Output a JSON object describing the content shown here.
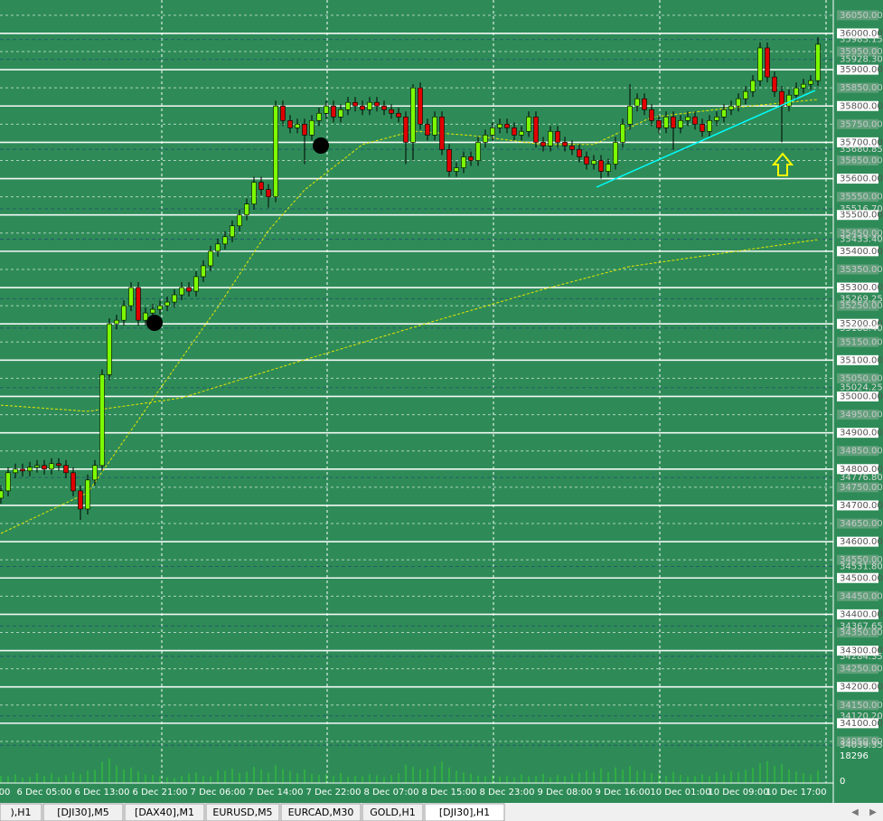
{
  "chart_data": {
    "type": "candlestick",
    "xlim": [
      -0.125,
      114.875
    ],
    "ylim": [
      34020,
      36092
    ],
    "xticks": [
      {
        "value": 0.5,
        "label": "00"
      },
      {
        "value": 6,
        "label": "6 Dec 05:00"
      },
      {
        "value": 14,
        "label": "6 Dec 13:00"
      },
      {
        "value": 22,
        "label": "6 Dec 21:00"
      },
      {
        "value": 30,
        "label": "7 Dec 06:00"
      },
      {
        "value": 38,
        "label": "7 Dec 14:00"
      },
      {
        "value": 46,
        "label": "7 Dec 22:00"
      },
      {
        "value": 54,
        "label": "8 Dec 07:00"
      },
      {
        "value": 62,
        "label": "8 Dec 15:00"
      },
      {
        "value": 70,
        "label": "8 Dec 23:00"
      },
      {
        "value": 78,
        "label": "9 Dec 08:00"
      },
      {
        "value": 86,
        "label": "9 Dec 16:00"
      },
      {
        "value": 94,
        "label": "10 Dec 01:00"
      },
      {
        "value": 102,
        "label": "10 Dec 09:00"
      },
      {
        "value": 110,
        "label": "10 Dec 17:00"
      }
    ],
    "yticks": [
      {
        "value": 36050,
        "label": "36050.00"
      },
      {
        "value": 36000,
        "label": "36000.00"
      },
      {
        "value": 35950,
        "label": "35950.00"
      },
      {
        "value": 35900,
        "label": "35900.00"
      },
      {
        "value": 35850,
        "label": "35850.00"
      },
      {
        "value": 35800,
        "label": "35800.00"
      },
      {
        "value": 35750,
        "label": "35750.00"
      },
      {
        "value": 35700,
        "label": "35700.00"
      },
      {
        "value": 35650,
        "label": "35650.00"
      },
      {
        "value": 35600,
        "label": "35600.00"
      },
      {
        "value": 35550,
        "label": "35550.00"
      },
      {
        "value": 35500,
        "label": "35500.00"
      },
      {
        "value": 35450,
        "label": "35450.00"
      },
      {
        "value": 35400,
        "label": "35400.00"
      },
      {
        "value": 35350,
        "label": "35350.00"
      },
      {
        "value": 35300,
        "label": "35300.00"
      },
      {
        "value": 35250,
        "label": "35250.00"
      },
      {
        "value": 35200,
        "label": "35200.00"
      },
      {
        "value": 35150,
        "label": "35150.00"
      },
      {
        "value": 35100,
        "label": "35100.00"
      },
      {
        "value": 35050,
        "label": "35050.00"
      },
      {
        "value": 35000,
        "label": "35000.00"
      },
      {
        "value": 34950,
        "label": "34950.00"
      },
      {
        "value": 34900,
        "label": "34900.00"
      },
      {
        "value": 34850,
        "label": "34850.00"
      },
      {
        "value": 34800,
        "label": "34800.00"
      },
      {
        "value": 34750,
        "label": "34750.00"
      },
      {
        "value": 34700,
        "label": "34700.00"
      },
      {
        "value": 34650,
        "label": "34650.00"
      },
      {
        "value": 34600,
        "label": "34600.00"
      },
      {
        "value": 34550,
        "label": "34550.00"
      },
      {
        "value": 34500,
        "label": "34500.00"
      },
      {
        "value": 34450,
        "label": "34450.00"
      },
      {
        "value": 34400,
        "label": "34400.00"
      },
      {
        "value": 34350,
        "label": "34350.00"
      },
      {
        "value": 34300,
        "label": "34300.00"
      },
      {
        "value": 34250,
        "label": "34250.00"
      },
      {
        "value": 34200,
        "label": "34200.00"
      },
      {
        "value": 34150,
        "label": "34150.00"
      },
      {
        "value": 34100,
        "label": "34100.00"
      },
      {
        "value": 34050,
        "label": "34050.00"
      }
    ],
    "levels": [
      {
        "value": 35983.15,
        "label": "35983.15"
      },
      {
        "value": 35928.3,
        "label": "35928.30"
      },
      {
        "value": 35680.85,
        "label": "35680.85"
      },
      {
        "value": 35516.7,
        "label": "35516.70"
      },
      {
        "value": 35433.4,
        "label": "35433.40"
      },
      {
        "value": 35269.25,
        "label": "35269.25"
      },
      {
        "value": 35188.4,
        "label": "35188.40"
      },
      {
        "value": 35024.25,
        "label": "35024.25"
      },
      {
        "value": 34776.8,
        "label": "34776.80"
      },
      {
        "value": 34531.8,
        "label": "34531.80"
      },
      {
        "value": 34367.65,
        "label": "34367.65"
      },
      {
        "value": 34284.35,
        "label": "34284.35"
      },
      {
        "value": 34120.2,
        "label": "34120.20"
      },
      {
        "value": 34039.35,
        "label": "34039.35"
      }
    ],
    "up_color": "#7cfc00",
    "down_color": "#e00000",
    "ohlc": [
      [
        34720,
        34755,
        34705,
        34740
      ],
      [
        34740,
        34805,
        34725,
        34790
      ],
      [
        34790,
        34815,
        34775,
        34800
      ],
      [
        34800,
        34815,
        34780,
        34795
      ],
      [
        34795,
        34820,
        34780,
        34805
      ],
      [
        34805,
        34825,
        34790,
        34810
      ],
      [
        34810,
        34825,
        34785,
        34800
      ],
      [
        34800,
        34830,
        34785,
        34815
      ],
      [
        34815,
        34830,
        34795,
        34810
      ],
      [
        34810,
        34825,
        34775,
        34790
      ],
      [
        34790,
        34805,
        34725,
        34740
      ],
      [
        34740,
        34755,
        34660,
        34690
      ],
      [
        34690,
        34785,
        34675,
        34770
      ],
      [
        34770,
        34825,
        34755,
        34810
      ],
      [
        34810,
        35075,
        34795,
        35060
      ],
      [
        35060,
        35215,
        35045,
        35200
      ],
      [
        35200,
        35225,
        35185,
        35210
      ],
      [
        35210,
        35265,
        35195,
        35250
      ],
      [
        35250,
        35315,
        35235,
        35300
      ],
      [
        35300,
        35315,
        35195,
        35210
      ],
      [
        35210,
        35245,
        35195,
        35230
      ],
      [
        35230,
        35255,
        35215,
        35240
      ],
      [
        35240,
        35265,
        35225,
        35250
      ],
      [
        35250,
        35275,
        35235,
        35260
      ],
      [
        35260,
        35295,
        35245,
        35280
      ],
      [
        35280,
        35315,
        35265,
        35300
      ],
      [
        35300,
        35315,
        35275,
        35290
      ],
      [
        35290,
        35345,
        35275,
        35330
      ],
      [
        35330,
        35375,
        35315,
        35360
      ],
      [
        35360,
        35415,
        35345,
        35400
      ],
      [
        35400,
        35435,
        35385,
        35420
      ],
      [
        35420,
        35455,
        35405,
        35440
      ],
      [
        35440,
        35485,
        35425,
        35470
      ],
      [
        35470,
        35515,
        35455,
        35500
      ],
      [
        35500,
        35545,
        35485,
        35530
      ],
      [
        35530,
        35605,
        35515,
        35590
      ],
      [
        35590,
        35605,
        35555,
        35570
      ],
      [
        35570,
        35585,
        35520,
        35550
      ],
      [
        35550,
        35815,
        35535,
        35800
      ],
      [
        35800,
        35815,
        35745,
        35760
      ],
      [
        35760,
        35775,
        35725,
        35740
      ],
      [
        35740,
        35765,
        35725,
        35750
      ],
      [
        35750,
        35765,
        35640,
        35720
      ],
      [
        35720,
        35775,
        35705,
        35760
      ],
      [
        35760,
        35795,
        35745,
        35780
      ],
      [
        35780,
        35815,
        35765,
        35800
      ],
      [
        35800,
        35815,
        35755,
        35770
      ],
      [
        35770,
        35805,
        35755,
        35790
      ],
      [
        35790,
        35825,
        35775,
        35810
      ],
      [
        35810,
        35825,
        35785,
        35800
      ],
      [
        35800,
        35815,
        35775,
        35790
      ],
      [
        35790,
        35825,
        35775,
        35810
      ],
      [
        35810,
        35825,
        35785,
        35800
      ],
      [
        35800,
        35815,
        35775,
        35790
      ],
      [
        35790,
        35805,
        35765,
        35780
      ],
      [
        35780,
        35795,
        35755,
        35770
      ],
      [
        35770,
        35785,
        35640,
        35700
      ],
      [
        35700,
        35860,
        35650,
        35850
      ],
      [
        35850,
        35865,
        35735,
        35750
      ],
      [
        35750,
        35765,
        35705,
        35720
      ],
      [
        35720,
        35785,
        35705,
        35770
      ],
      [
        35770,
        35785,
        35665,
        35680
      ],
      [
        35680,
        35695,
        35605,
        35620
      ],
      [
        35620,
        35645,
        35605,
        35630
      ],
      [
        35630,
        35675,
        35615,
        35660
      ],
      [
        35660,
        35675,
        35635,
        35650
      ],
      [
        35650,
        35715,
        35635,
        35700
      ],
      [
        35700,
        35735,
        35685,
        35720
      ],
      [
        35720,
        35755,
        35705,
        35740
      ],
      [
        35740,
        35765,
        35725,
        35750
      ],
      [
        35750,
        35765,
        35725,
        35740
      ],
      [
        35740,
        35755,
        35705,
        35720
      ],
      [
        35720,
        35745,
        35705,
        35730
      ],
      [
        35730,
        35785,
        35715,
        35770
      ],
      [
        35770,
        35785,
        35685,
        35700
      ],
      [
        35700,
        35715,
        35675,
        35690
      ],
      [
        35690,
        35745,
        35675,
        35730
      ],
      [
        35730,
        35745,
        35685,
        35700
      ],
      [
        35700,
        35715,
        35675,
        35690
      ],
      [
        35690,
        35705,
        35665,
        35680
      ],
      [
        35680,
        35695,
        35645,
        35660
      ],
      [
        35660,
        35675,
        35625,
        35640
      ],
      [
        35640,
        35665,
        35625,
        35650
      ],
      [
        35650,
        35665,
        35600,
        35620
      ],
      [
        35620,
        35655,
        35605,
        35640
      ],
      [
        35640,
        35715,
        35625,
        35700
      ],
      [
        35700,
        35765,
        35685,
        35750
      ],
      [
        35750,
        35860,
        35735,
        35800
      ],
      [
        35800,
        35835,
        35785,
        35820
      ],
      [
        35820,
        35835,
        35775,
        35790
      ],
      [
        35790,
        35805,
        35745,
        35760
      ],
      [
        35760,
        35775,
        35725,
        35740
      ],
      [
        35740,
        35785,
        35725,
        35770
      ],
      [
        35770,
        35785,
        35680,
        35740
      ],
      [
        35740,
        35775,
        35725,
        35760
      ],
      [
        35760,
        35785,
        35745,
        35770
      ],
      [
        35770,
        35785,
        35735,
        35750
      ],
      [
        35750,
        35765,
        35715,
        35730
      ],
      [
        35730,
        35775,
        35715,
        35760
      ],
      [
        35760,
        35785,
        35745,
        35770
      ],
      [
        35770,
        35805,
        35755,
        35790
      ],
      [
        35790,
        35815,
        35775,
        35800
      ],
      [
        35800,
        35835,
        35785,
        35820
      ],
      [
        35820,
        35855,
        35805,
        35840
      ],
      [
        35840,
        35885,
        35825,
        35870
      ],
      [
        35870,
        35975,
        35855,
        35960
      ],
      [
        35960,
        35975,
        35865,
        35880
      ],
      [
        35880,
        35895,
        35825,
        35840
      ],
      [
        35840,
        35855,
        35700,
        35800
      ],
      [
        35800,
        35845,
        35785,
        35830
      ],
      [
        35830,
        35865,
        35815,
        35850
      ],
      [
        35850,
        35875,
        35835,
        35860
      ],
      [
        35860,
        35885,
        35845,
        35870
      ],
      [
        35870,
        35990,
        35855,
        35970
      ]
    ],
    "ma_lines": [
      {
        "color": "#e6e600",
        "x": [
          0,
          12,
          25,
          41,
          60,
          75,
          87,
          113
        ],
        "values": [
          34976,
          34959,
          34996,
          35095,
          35208,
          35295,
          35358,
          35432
        ]
      },
      {
        "color": "#e6e600",
        "x": [
          0,
          12,
          22,
          30,
          37,
          42,
          50,
          57,
          65,
          75,
          82,
          90,
          100,
          113
        ],
        "values": [
          34623,
          34735,
          35021,
          35246,
          35457,
          35569,
          35694,
          35731,
          35719,
          35694,
          35694,
          35769,
          35793,
          35818
        ]
      }
    ],
    "volume_color": "#32cd32",
    "volume_ylim": [
      0,
      18296
    ],
    "volume_yticks": [
      18296,
      0
    ],
    "volume": [
      5200,
      4800,
      6100,
      3900,
      4500,
      7200,
      5100,
      6800,
      4200,
      5600,
      7900,
      6300,
      8800,
      9400,
      15200,
      17800,
      12600,
      9800,
      11200,
      8400,
      6200,
      5800,
      4900,
      4100,
      3600,
      5200,
      6900,
      7600,
      5400,
      4800,
      9100,
      8700,
      10400,
      7300,
      8200,
      11800,
      9600,
      7400,
      12800,
      10200,
      8600,
      7100,
      9900,
      6800,
      5900,
      6400,
      5100,
      7300,
      4600,
      5200,
      4800,
      6100,
      5500,
      4300,
      5800,
      7200,
      13200,
      11600,
      9800,
      10300,
      12100,
      15600,
      11200,
      8900,
      7600,
      6700,
      5400,
      4900,
      5600,
      4700,
      5300,
      4100,
      6200,
      4800,
      5100,
      6500,
      4200,
      5700,
      4900,
      6800,
      7400,
      9200,
      8100,
      10600,
      7900,
      11300,
      9600,
      12400,
      8800,
      9100,
      7200,
      6600,
      5200,
      7800,
      5900,
      4600,
      5100,
      6300,
      5400,
      7700,
      6200,
      8600,
      7900,
      9400,
      10800,
      14200,
      15800,
      12300,
      13600,
      9800,
      8400,
      7100,
      6200,
      9000
    ]
  },
  "tabs": {
    "items": [
      "),H1",
      "[DJI30],M5",
      "[DAX40],M1",
      "EURUSD,M5",
      "EURCAD,M30",
      "GOLD,H1",
      "[DJI30],H1"
    ],
    "active": 6
  }
}
